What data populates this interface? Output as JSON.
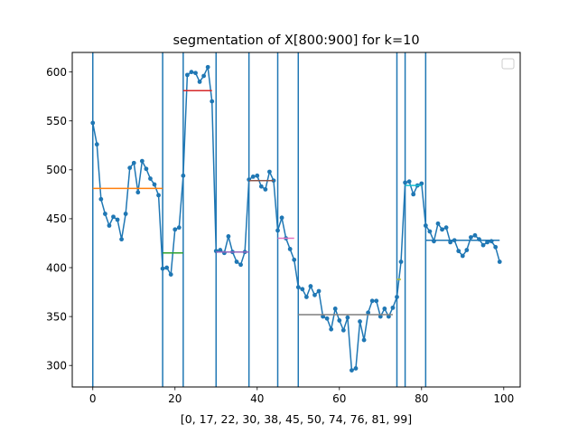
{
  "chart_data": {
    "type": "line",
    "title": "segmentation of X[800:900] for k=10",
    "xlabel": "[0, 17, 22, 30, 38, 45, 50, 74, 76, 81, 99]",
    "ylabel": "",
    "xlim": [
      -5,
      104
    ],
    "ylim": [
      278,
      620
    ],
    "xticks": [
      0,
      20,
      40,
      60,
      80,
      100
    ],
    "yticks": [
      300,
      350,
      400,
      450,
      500,
      550,
      600
    ],
    "grid": false,
    "legend": {
      "placement": "top-right",
      "entries": []
    },
    "breakpoints": [
      0,
      17,
      22,
      30,
      38,
      45,
      50,
      74,
      76,
      81
    ],
    "series": [
      {
        "color": "#1f77b4",
        "marker": "circle",
        "y": [
          548,
          526,
          470,
          455,
          443,
          452,
          449,
          429,
          455,
          502,
          507,
          477,
          509,
          501,
          491,
          485,
          474,
          399,
          400,
          393,
          439,
          441,
          494,
          597,
          600,
          599,
          590,
          596,
          605,
          570,
          417,
          418,
          415,
          432,
          416,
          406,
          403,
          416,
          490,
          493,
          494,
          483,
          480,
          498,
          489,
          438,
          451,
          430,
          419,
          408,
          380,
          378,
          370,
          381,
          372,
          376,
          350,
          348,
          337,
          358,
          346,
          336,
          349,
          295,
          297,
          345,
          326,
          354,
          366,
          366,
          350,
          358,
          350,
          359,
          370,
          406,
          487,
          488,
          475,
          484,
          486,
          443,
          437,
          427,
          445,
          439,
          441,
          426,
          428,
          417,
          412,
          418,
          431,
          433,
          429,
          423,
          426,
          427,
          421,
          406
        ]
      }
    ],
    "segment_means": [
      {
        "start": 0,
        "end": 17,
        "value": 481,
        "color": "#ff7f0e"
      },
      {
        "start": 17,
        "end": 22,
        "value": 415,
        "color": "#2ca02c"
      },
      {
        "start": 22,
        "end": 29,
        "value": 581,
        "color": "#d62728"
      },
      {
        "start": 30,
        "end": 38,
        "value": 416,
        "color": "#9467bd"
      },
      {
        "start": 38,
        "end": 44,
        "value": 489,
        "color": "#8c564b"
      },
      {
        "start": 45,
        "end": 49,
        "value": 430,
        "color": "#e377c2"
      },
      {
        "start": 50,
        "end": 73,
        "value": 352,
        "color": "#7f7f7f"
      },
      {
        "start": 74,
        "end": 75,
        "value": 388,
        "color": "#bcbd22"
      },
      {
        "start": 76,
        "end": 80,
        "value": 484,
        "color": "#17becf"
      },
      {
        "start": 81,
        "end": 99,
        "value": 428,
        "color": "#1f77b4"
      }
    ]
  }
}
